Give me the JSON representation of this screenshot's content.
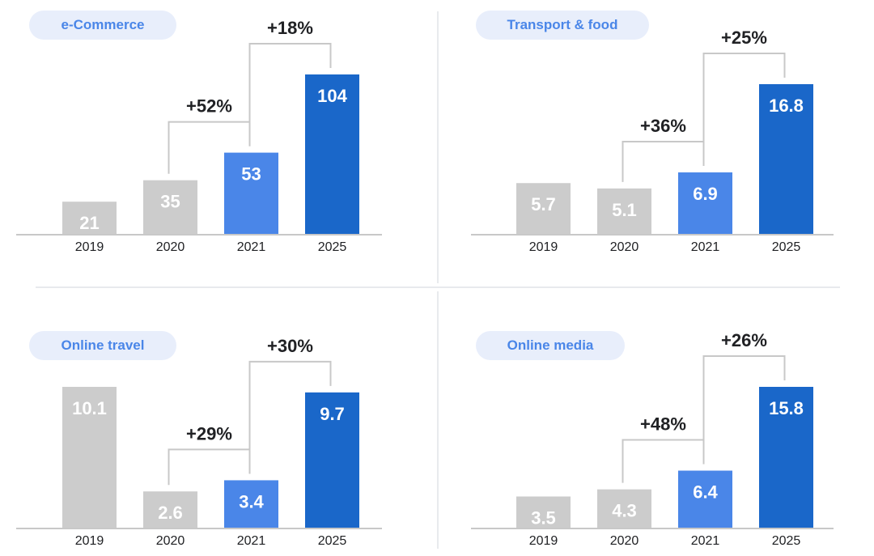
{
  "colors": {
    "gray": "#cccccc",
    "light_blue": "#4a86e8",
    "dark_blue": "#1a67c9",
    "pill_bg": "#e8eefb",
    "pill_text": "#4a86e8",
    "bracket": "#c8c8c8",
    "axis": "#c8c8c8",
    "text": "#202124"
  },
  "chart_data": [
    {
      "type": "bar",
      "title": "e-Commerce",
      "categories": [
        "2019",
        "2020",
        "2021",
        "2025"
      ],
      "values": [
        21,
        35,
        53,
        104
      ],
      "value_labels": [
        "21",
        "35",
        "53",
        "104"
      ],
      "bar_colors": [
        "gray",
        "gray",
        "light_blue",
        "dark_blue"
      ],
      "growth": [
        {
          "from": "2020",
          "to": "2021",
          "label": "+52%"
        },
        {
          "from": "2021",
          "to": "2025",
          "label": "+18%"
        }
      ]
    },
    {
      "type": "bar",
      "title": "Transport & food",
      "categories": [
        "2019",
        "2020",
        "2021",
        "2025"
      ],
      "values": [
        5.7,
        5.1,
        6.9,
        16.8
      ],
      "value_labels": [
        "5.7",
        "5.1",
        "6.9",
        "16.8"
      ],
      "bar_colors": [
        "gray",
        "gray",
        "light_blue",
        "dark_blue"
      ],
      "growth": [
        {
          "from": "2020",
          "to": "2021",
          "label": "+36%"
        },
        {
          "from": "2021",
          "to": "2025",
          "label": "+25%"
        }
      ]
    },
    {
      "type": "bar",
      "title": "Online travel",
      "categories": [
        "2019",
        "2020",
        "2021",
        "2025"
      ],
      "values": [
        10.1,
        2.6,
        3.4,
        9.7
      ],
      "value_labels": [
        "10.1",
        "2.6",
        "3.4",
        "9.7"
      ],
      "bar_colors": [
        "gray",
        "gray",
        "light_blue",
        "dark_blue"
      ],
      "growth": [
        {
          "from": "2020",
          "to": "2021",
          "label": "+29%"
        },
        {
          "from": "2021",
          "to": "2025",
          "label": "+30%"
        }
      ]
    },
    {
      "type": "bar",
      "title": "Online media",
      "categories": [
        "2019",
        "2020",
        "2021",
        "2025"
      ],
      "values": [
        3.5,
        4.3,
        6.4,
        15.8
      ],
      "value_labels": [
        "3.5",
        "4.3",
        "6.4",
        "15.8"
      ],
      "bar_colors": [
        "gray",
        "gray",
        "light_blue",
        "dark_blue"
      ],
      "growth": [
        {
          "from": "2020",
          "to": "2021",
          "label": "+48%"
        },
        {
          "from": "2021",
          "to": "2025",
          "label": "+26%"
        }
      ]
    }
  ]
}
